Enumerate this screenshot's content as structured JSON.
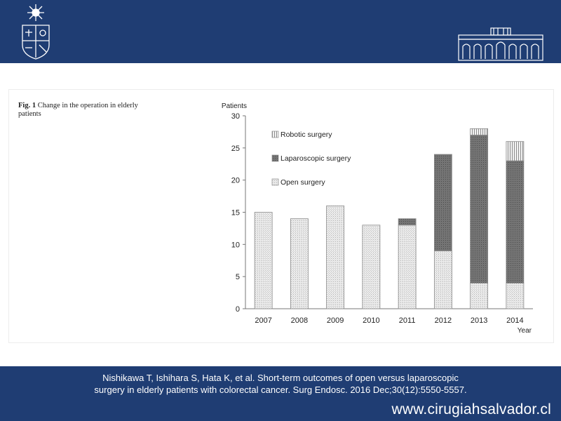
{
  "figure": {
    "caption_label": "Fig. 1",
    "caption_text": "Change in the operation in elderly patients"
  },
  "footer": {
    "citation_line1": "Nishikawa T, Ishihara S, Hata K, et al. Short-term outcomes of open versus laparoscopic",
    "citation_line2": "surgery in elderly patients with colorectal cancer. Surg Endosc. 2016 Dec;30(12):5550-5557.",
    "website": "www.cirugiahsalvador.cl"
  },
  "colors": {
    "band": "#1f3d73",
    "open": "#e4e4e4",
    "laparoscopic": "#6d6d6d",
    "robotic": "#c4c4c4"
  },
  "icons": {
    "left_logo": "university-crest-icon",
    "right_logo": "building-facade-icon"
  },
  "chart_data": {
    "type": "bar",
    "stacked": true,
    "title": "",
    "ylabel": "Patients",
    "xlabel": "Year",
    "ylim": [
      0,
      30
    ],
    "yticks": [
      0,
      5,
      10,
      15,
      20,
      25,
      30
    ],
    "categories": [
      "2007",
      "2008",
      "2009",
      "2010",
      "2011",
      "2012",
      "2013",
      "2014"
    ],
    "series": [
      {
        "name": "Open surgery",
        "values": [
          15,
          14,
          16,
          13,
          13,
          9,
          4,
          4
        ]
      },
      {
        "name": "Laparoscopic surgery",
        "values": [
          0,
          0,
          0,
          0,
          1,
          15,
          23,
          19
        ]
      },
      {
        "name": "Robotic surgery",
        "values": [
          0,
          0,
          0,
          0,
          0,
          0,
          1,
          3
        ]
      }
    ],
    "legend_position": "top-left",
    "legend_order": [
      "Robotic surgery",
      "Laparoscopic surgery",
      "Open surgery"
    ],
    "grid": false
  }
}
